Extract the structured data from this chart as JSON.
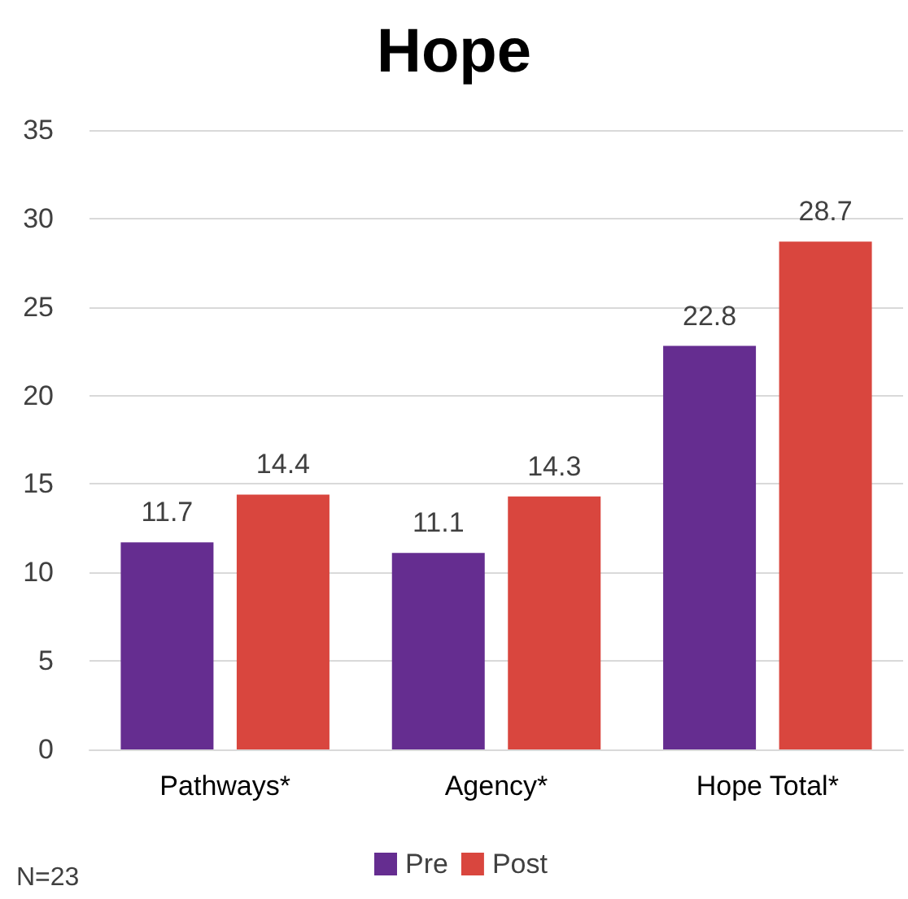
{
  "chart_data": {
    "type": "bar",
    "title": "Hope",
    "categories": [
      "Pathways*",
      "Agency*",
      "Hope Total*"
    ],
    "series": [
      {
        "name": "Pre",
        "color": "#652d90",
        "values": [
          11.7,
          11.1,
          22.8
        ]
      },
      {
        "name": "Post",
        "color": "#d9463e",
        "values": [
          14.4,
          14.3,
          28.7
        ]
      }
    ],
    "ylim": [
      0,
      35
    ],
    "yticks": [
      0,
      5,
      10,
      15,
      20,
      25,
      30,
      35
    ],
    "grid": "y",
    "legend": "bottom",
    "data_labels": true,
    "annotations": [
      "N=23"
    ]
  }
}
